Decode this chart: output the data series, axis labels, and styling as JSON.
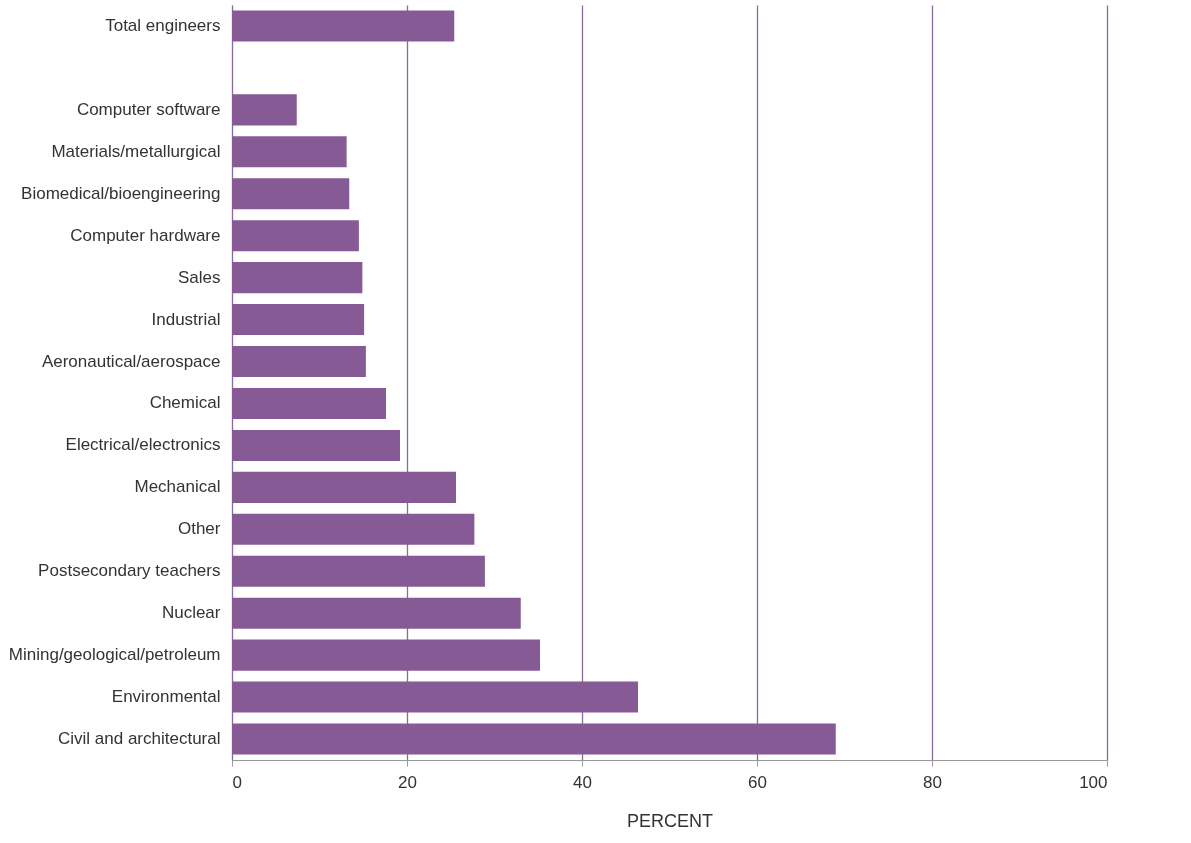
{
  "chart_data": {
    "type": "bar",
    "orientation": "horizontal",
    "categories": [
      "Total engineers",
      null,
      "Computer software",
      "Materials/metallurgical",
      "Biomedical/bioengineering",
      "Computer hardware",
      "Sales",
      "Industrial",
      "Aeronautical/aerospace",
      "Chemical",
      "Electrical/electronics",
      "Mechanical",
      "Other",
      "Postsecondary teachers",
      "Nuclear",
      "Mining/geological/petroleum",
      "Environmental",
      "Civil and architectural"
    ],
    "values": [
      25.4,
      null,
      7.4,
      13.1,
      13.4,
      14.5,
      14.9,
      15.1,
      15.3,
      17.6,
      19.2,
      25.6,
      27.7,
      28.9,
      33.0,
      35.2,
      46.4,
      69.0
    ],
    "color": "#865a94",
    "xlabel": "PERCENT",
    "xlim": [
      0,
      100
    ],
    "xticks": [
      0,
      20,
      40,
      60,
      80,
      100
    ],
    "grid": "x"
  }
}
